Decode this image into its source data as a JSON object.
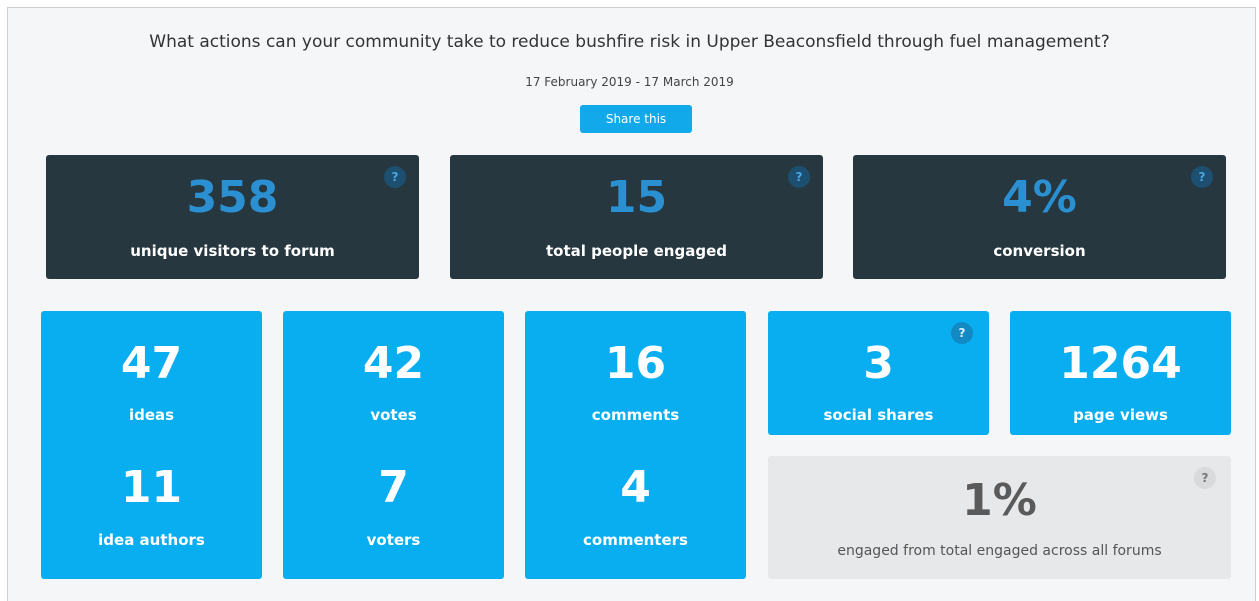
{
  "header": {
    "title": "What actions can your community take to reduce bushfire risk in Upper Beaconsfield through fuel management?",
    "date_range": "17 February 2019 - 17 March 2019",
    "share_button": "Share this"
  },
  "help_label": "?",
  "summary": [
    {
      "value": "358",
      "label": "unique visitors to forum"
    },
    {
      "value": "15",
      "label": "total people engaged"
    },
    {
      "value": "4%",
      "label": "conversion"
    }
  ],
  "activity": [
    {
      "value": "47",
      "label": "ideas",
      "value2": "11",
      "label2": "idea authors"
    },
    {
      "value": "42",
      "label": "votes",
      "value2": "7",
      "label2": "voters"
    },
    {
      "value": "16",
      "label": "comments",
      "value2": "4",
      "label2": "commenters"
    }
  ],
  "reach": [
    {
      "value": "3",
      "label": "social shares"
    },
    {
      "value": "1264",
      "label": "page views"
    }
  ],
  "engagement_share": {
    "value": "1%",
    "label": "engaged from total engaged across all forums"
  }
}
